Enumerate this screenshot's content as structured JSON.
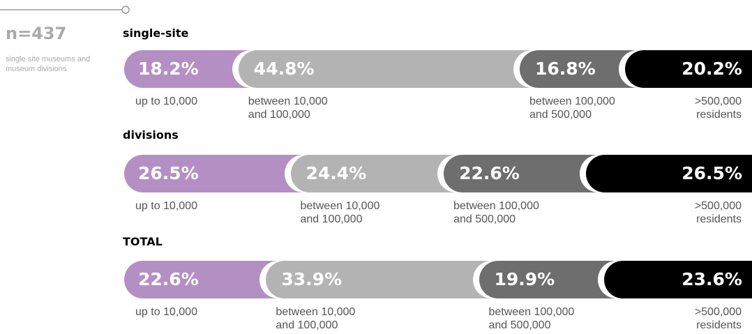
{
  "sample": {
    "title": "n=437",
    "text": "single site museums and museum divisions"
  },
  "chart_data": {
    "type": "bar",
    "stacked": true,
    "orientation": "horizontal",
    "categories": [
      "single-site",
      "divisions",
      "TOTAL"
    ],
    "series": [
      {
        "name": "up to 10,000",
        "color": "#b48fc3",
        "values": [
          18.2,
          26.5,
          22.6
        ],
        "value_labels": [
          "18.2%",
          "26.5%",
          "22.6%"
        ]
      },
      {
        "name": "between 10,000 and 100,000",
        "color": "#b3b3b3",
        "values": [
          44.8,
          24.4,
          33.9
        ],
        "value_labels": [
          "44.8%",
          "24.4%",
          "33.9%"
        ]
      },
      {
        "name": "between 100,000 and 500,000",
        "color": "#6e6e6e",
        "values": [
          16.8,
          22.6,
          19.9
        ],
        "value_labels": [
          "16.8%",
          "22.6%",
          "19.9%"
        ]
      },
      {
        "name": ">500,000 residents",
        "color": "#000000",
        "values": [
          20.2,
          26.5,
          23.6
        ],
        "value_labels": [
          "20.2%",
          "26.5%",
          "23.6%"
        ]
      }
    ]
  }
}
